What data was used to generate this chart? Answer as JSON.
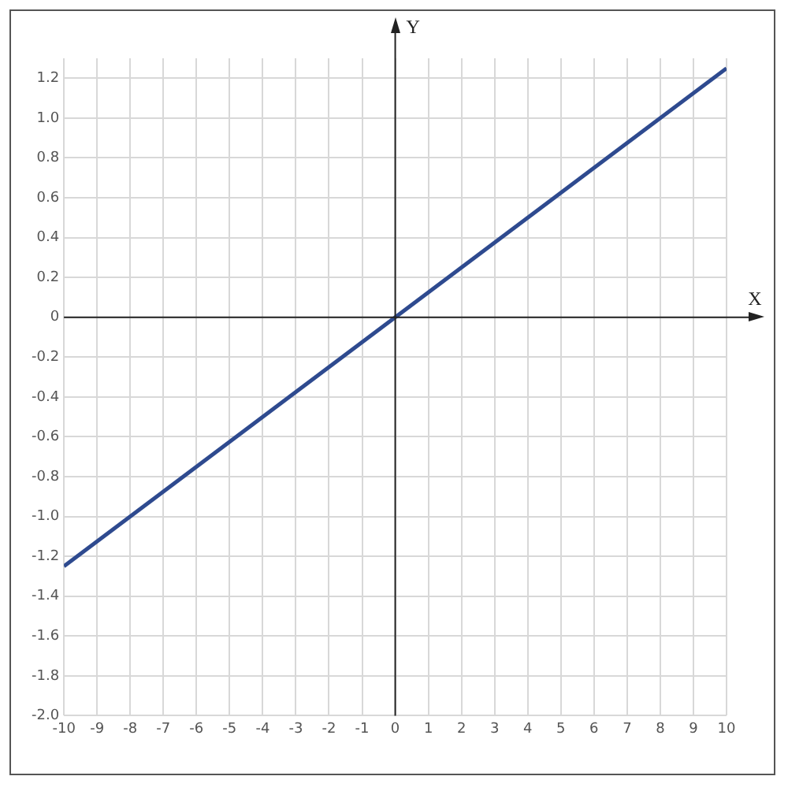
{
  "chart_data": {
    "type": "line",
    "xlabel": "X",
    "ylabel": "Y",
    "x": [
      -10,
      10
    ],
    "series": [
      {
        "color": "#2e4a8f",
        "values": [
          -1.25,
          1.25
        ]
      }
    ],
    "xlim": [
      -10,
      10
    ],
    "ylim": [
      -2.0,
      1.3
    ],
    "xticks": [
      -10,
      -9,
      -8,
      -7,
      -6,
      -5,
      -4,
      -3,
      -2,
      -1,
      0,
      1,
      2,
      3,
      4,
      5,
      6,
      7,
      8,
      9,
      10
    ],
    "yticks": [
      {
        "value": -2.0,
        "label": "-2.0"
      },
      -1.8,
      -1.6,
      -1.4,
      -1.2,
      {
        "value": -1.0,
        "label": "-1.0"
      },
      -0.8,
      -0.6,
      -0.4,
      -0.2,
      0,
      0.2,
      0.4,
      0.6,
      0.8,
      {
        "value": 1.0,
        "label": "1.0"
      },
      1.2
    ],
    "grid": true,
    "legend": false,
    "marker": "none",
    "line_style": "solid"
  }
}
